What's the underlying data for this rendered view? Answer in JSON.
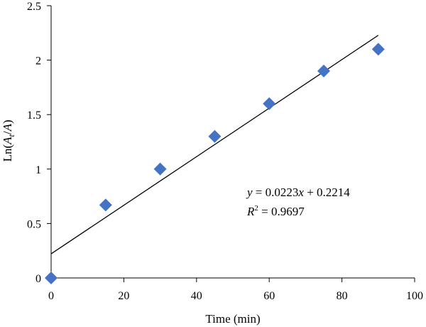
{
  "chart_data": {
    "type": "scatter",
    "xlabel": "Time (min)",
    "ylabel_parts": {
      "prefix": "Ln(",
      "base": "A",
      "subscript": "t",
      "suffix": "/A)"
    },
    "xlim": [
      0,
      100
    ],
    "ylim": [
      0,
      2.5
    ],
    "xticks": [
      "0",
      "20",
      "40",
      "60",
      "80",
      "100"
    ],
    "yticks": [
      "0",
      "0.5",
      "1",
      "1.5",
      "2",
      "2.5"
    ],
    "grid": false,
    "legend": "none",
    "series": [
      {
        "marker": "diamond",
        "color": "#4472C4",
        "x": [
          0,
          15,
          30,
          45,
          60,
          75,
          90
        ],
        "y": [
          0,
          0.67,
          1.0,
          1.3,
          1.6,
          1.9,
          2.1
        ]
      }
    ],
    "trendline": {
      "type": "linear",
      "slope": 0.0223,
      "intercept": 0.2214,
      "x_range": [
        0,
        90
      ],
      "color": "#000000"
    },
    "annotations": {
      "equation": {
        "y_var": "y",
        "eq1": " = 0.0223",
        "x_var": "x",
        "eq2": " + 0.2214"
      },
      "r_squared": {
        "r": "R",
        "sup": "2",
        "value": " = 0.9697"
      }
    }
  }
}
